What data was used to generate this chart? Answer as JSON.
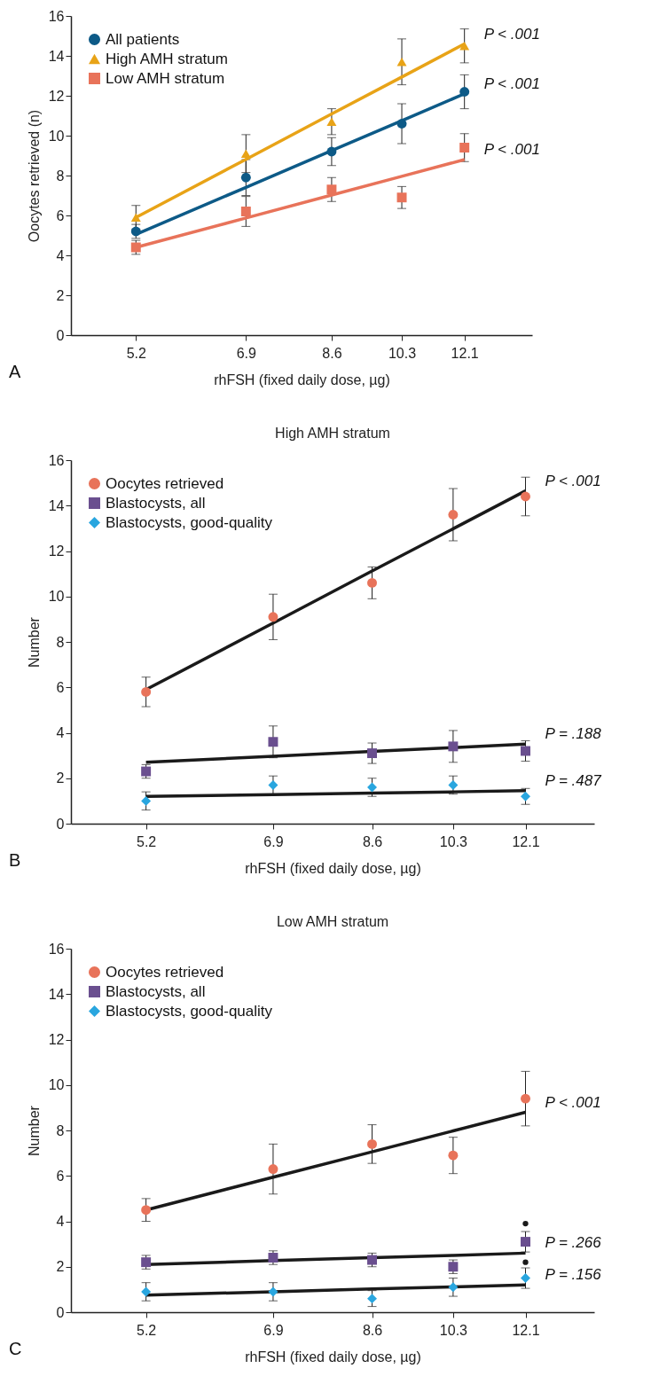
{
  "chart_data": [
    {
      "type": "scatter",
      "xlabel": "rhFSH (fixed daily dose, µg)",
      "ylabel": "Oocytes retrieved (n)",
      "log": "x",
      "xlim": [
        4.4,
        14.4
      ],
      "xticks": [
        5.2,
        6.9,
        8.6,
        10.3,
        12.1
      ],
      "ylim": [
        0,
        16
      ],
      "yticks": [
        0,
        2,
        4,
        6,
        8,
        10,
        12,
        14,
        16
      ],
      "grid": false,
      "legend": "top left",
      "x": [
        5.2,
        6.9,
        8.6,
        10.3,
        12.1
      ],
      "series": [
        {
          "name": "All patients",
          "color": "#0d5a87",
          "marker": "circle",
          "values": [
            5.2,
            7.9,
            9.2,
            10.6,
            12.2
          ],
          "errors": [
            0.35,
            0.9,
            0.7,
            1.0,
            0.85
          ]
        },
        {
          "name": "High AMH stratum",
          "color": "#e8a317",
          "marker": "triangle",
          "values": [
            5.9,
            9.1,
            10.7,
            13.7,
            14.5
          ],
          "errors": [
            0.6,
            0.95,
            0.65,
            1.15,
            0.85
          ]
        },
        {
          "name": "Low AMH stratum",
          "color": "#e8735a",
          "marker": "square",
          "values": [
            4.4,
            6.2,
            7.3,
            6.9,
            9.4
          ],
          "errors": [
            0.35,
            0.75,
            0.6,
            0.55,
            0.7
          ]
        },
        {
          "type": "line",
          "color": "#e8a317",
          "values": [
            5.9,
            8.81,
            11.09,
            12.94,
            14.6
          ]
        },
        {
          "type": "line",
          "color": "#0d5a87",
          "values": [
            5.05,
            7.41,
            9.25,
            10.75,
            12.1
          ]
        },
        {
          "type": "line",
          "color": "#e8735a",
          "values": [
            4.4,
            5.87,
            7.02,
            7.96,
            8.8
          ]
        }
      ],
      "annotations": [
        "P < .001",
        "P < .001",
        "P < .001",
        "A"
      ]
    },
    {
      "type": "scatter",
      "title": "High AMH stratum",
      "xlabel": "rhFSH (fixed daily dose, µg)",
      "ylabel": "Number",
      "log": "x",
      "xlim": [
        4.4,
        14.1
      ],
      "xticks": [
        5.2,
        6.9,
        8.6,
        10.3,
        12.1
      ],
      "ylim": [
        0,
        16
      ],
      "yticks": [
        0,
        2,
        4,
        6,
        8,
        10,
        12,
        14,
        16
      ],
      "grid": false,
      "legend": "top left",
      "x": [
        5.2,
        6.9,
        8.6,
        10.3,
        12.1
      ],
      "series": [
        {
          "name": "Oocytes retrieved",
          "color": "#e8735a",
          "marker": "circle",
          "values": [
            5.8,
            9.1,
            10.6,
            13.6,
            14.4
          ],
          "errors": [
            0.65,
            1.0,
            0.7,
            1.15,
            0.85
          ]
        },
        {
          "name": "Blastocysts, all",
          "color": "#6a4f8f",
          "marker": "square",
          "values": [
            2.3,
            3.6,
            3.1,
            3.4,
            3.2
          ],
          "errors": [
            0.3,
            0.7,
            0.45,
            0.7,
            0.45
          ]
        },
        {
          "name": "Blastocysts, good-quality",
          "color": "#29a6df",
          "marker": "diamond",
          "values": [
            1.0,
            1.7,
            1.6,
            1.7,
            1.2
          ],
          "errors": [
            0.4,
            0.4,
            0.4,
            0.4,
            0.35
          ]
        },
        {
          "type": "line",
          "color": "#1a1a1a",
          "values": [
            5.9,
            8.83,
            11.12,
            12.98,
            14.65
          ]
        },
        {
          "type": "line",
          "color": "#1a1a1a",
          "values": [
            2.7,
            2.97,
            3.18,
            3.35,
            3.5
          ]
        },
        {
          "type": "line",
          "color": "#1a1a1a",
          "values": [
            1.2,
            1.28,
            1.35,
            1.4,
            1.45
          ]
        }
      ],
      "annotations": [
        "P < .001",
        "P = .188",
        "P = .487",
        "B"
      ]
    },
    {
      "type": "scatter",
      "title": "Low AMH stratum",
      "xlabel": "rhFSH (fixed daily dose, µg)",
      "ylabel": "Number",
      "log": "x",
      "xlim": [
        4.4,
        14.1
      ],
      "xticks": [
        5.2,
        6.9,
        8.6,
        10.3,
        12.1
      ],
      "ylim": [
        0,
        16
      ],
      "yticks": [
        0,
        2,
        4,
        6,
        8,
        10,
        12,
        14,
        16
      ],
      "grid": false,
      "legend": "top left",
      "x": [
        5.2,
        6.9,
        8.6,
        10.3,
        12.1
      ],
      "series": [
        {
          "name": "Oocytes retrieved",
          "color": "#e8735a",
          "marker": "circle",
          "values": [
            4.5,
            6.3,
            7.4,
            6.9,
            9.4
          ],
          "errors": [
            0.5,
            1.1,
            0.85,
            0.8,
            1.2
          ]
        },
        {
          "name": "Blastocysts, all",
          "color": "#6a4f8f",
          "marker": "square",
          "values": [
            2.2,
            2.4,
            2.3,
            2.0,
            3.1
          ],
          "errors": [
            0.3,
            0.3,
            0.3,
            0.3,
            0.45
          ]
        },
        {
          "name": "Blastocysts, good-quality",
          "color": "#29a6df",
          "marker": "diamond",
          "values": [
            0.9,
            0.9,
            0.6,
            1.1,
            1.5
          ],
          "errors": [
            0.4,
            0.4,
            0.35,
            0.4,
            0.45
          ]
        },
        {
          "type": "line",
          "color": "#1a1a1a",
          "values": [
            4.5,
            5.94,
            7.06,
            7.98,
            8.8
          ]
        },
        {
          "type": "line",
          "color": "#1a1a1a",
          "values": [
            2.1,
            2.27,
            2.4,
            2.5,
            2.6
          ]
        },
        {
          "type": "line",
          "color": "#1a1a1a",
          "values": [
            0.75,
            0.9,
            1.02,
            1.11,
            1.2
          ]
        },
        {
          "color": "#1a1a1a",
          "marker": "circle",
          "values": [
            null,
            null,
            null,
            null,
            3.9
          ]
        },
        {
          "color": "#1a1a1a",
          "marker": "circle",
          "values": [
            null,
            null,
            null,
            null,
            2.2
          ]
        }
      ],
      "annotations": [
        "P < .001",
        "P = .266",
        "P = .156",
        "C"
      ]
    }
  ]
}
